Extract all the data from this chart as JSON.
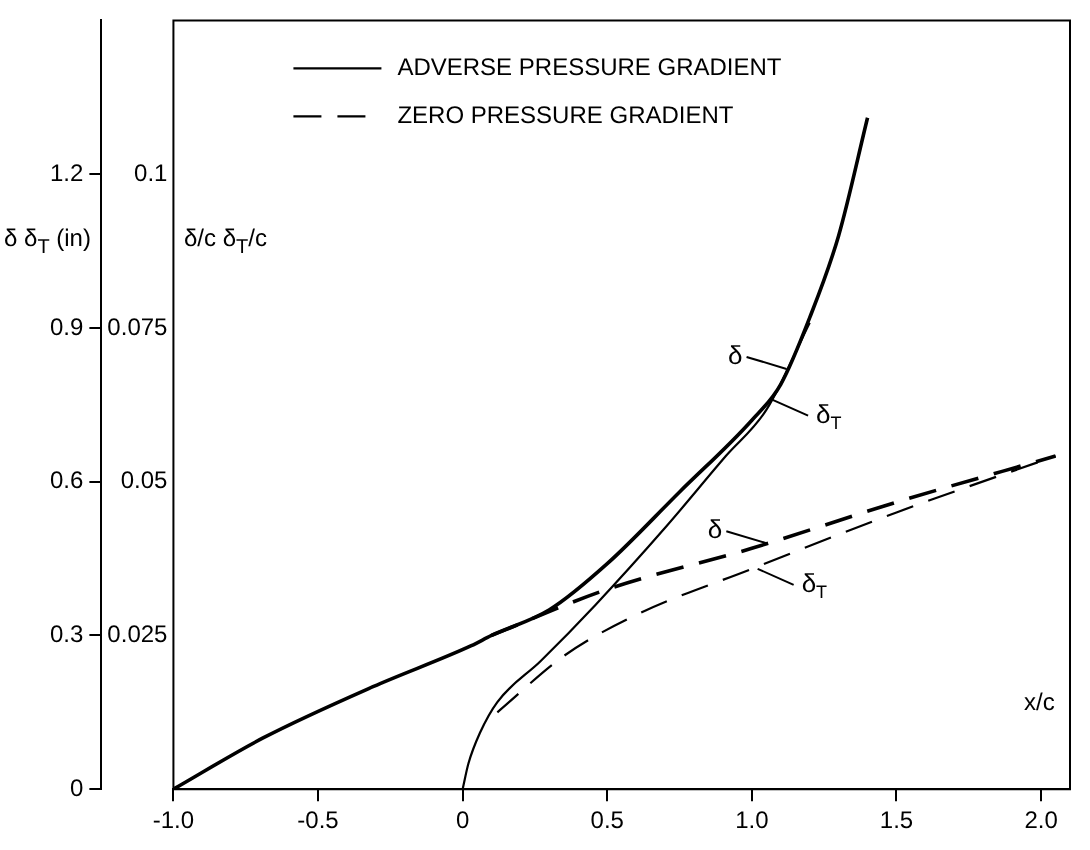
{
  "chart_data": {
    "type": "line",
    "xlabel": "x/c",
    "ylabel": "δ  δ$_{T}$ (in)",
    "y2label": "δ/c  δ$_{T}$/c",
    "xlim": [
      -1,
      2.1
    ],
    "ylim": [
      0,
      1.5
    ],
    "y2lim": [
      0,
      0.125
    ],
    "xticks": [
      {
        "value": -1,
        "label": "-1.0"
      },
      -0.5,
      0,
      0.5,
      {
        "value": 1,
        "label": "1.0"
      },
      1.5,
      {
        "value": 2,
        "label": "2.0"
      }
    ],
    "yticks": [
      0,
      0.3,
      0.6,
      0.9,
      1.2
    ],
    "y2ticks": [
      0.025,
      0.05,
      0.075,
      0.1
    ],
    "grid": false,
    "legend": "top",
    "marker": "none",
    "series": [
      {
        "name": "ADVERSE PRESSURE GRADIENT",
        "color": "#000000",
        "line_style": "solid",
        "x": [
          -1,
          -0.69,
          -0.31,
          0.03,
          0.1,
          0.3,
          0.5,
          0.75,
          1,
          1.1,
          1.2,
          1.3,
          1.4
        ],
        "values": [
          0,
          0.1,
          0.2,
          0.28,
          0.3,
          0.35,
          0.44,
          0.58,
          0.72,
          0.79,
          0.92,
          1.08,
          1.31
        ]
      },
      {
        "color": "#000000",
        "line_style": "solid",
        "x": [
          0,
          0.02,
          0.06,
          0.12,
          0.27,
          0.46,
          0.7,
          0.91,
          1.05,
          1.2
        ],
        "values": [
          0,
          0.05,
          0.11,
          0.17,
          0.25,
          0.36,
          0.51,
          0.65,
          0.74,
          0.91
        ]
      },
      {
        "name": "ZERO PRESSURE GRADIENT",
        "color": "#000000",
        "line_style": "dashed",
        "x": [
          0.1,
          0.5,
          1,
          1.5,
          2.05
        ],
        "values": [
          0.3,
          0.39,
          0.47,
          0.56,
          0.65
        ]
      },
      {
        "color": "#000000",
        "line_style": "dashed",
        "x": [
          0.12,
          0.35,
          0.6,
          1,
          1.5,
          2.05
        ],
        "values": [
          0.15,
          0.26,
          0.34,
          0.43,
          0.54,
          0.65
        ]
      }
    ],
    "annotations": [
      {
        "text": "δ",
        "x": 1.12,
        "y": 0.82
      },
      {
        "text": "δ$_{T}$",
        "x": 1.07,
        "y": 0.76
      },
      {
        "text": "δ",
        "x": 1.05,
        "y": 0.48
      },
      {
        "text": "δ$_{T}$",
        "x": 1.02,
        "y": 0.43
      }
    ]
  }
}
